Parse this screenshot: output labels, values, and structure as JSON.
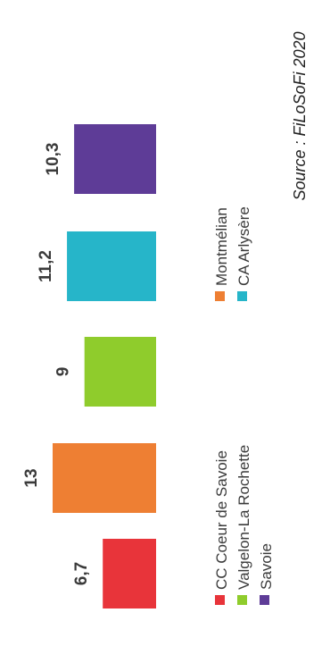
{
  "chart_data": {
    "type": "bar",
    "categories": [
      "CC Coeur de Savoie",
      "Montmélian",
      "Valgelon-La Rochette",
      "CA Arlysère",
      "Savoie"
    ],
    "values": [
      6.7,
      13,
      9,
      11.2,
      10.3
    ],
    "value_labels": [
      "6,7",
      "13",
      "9",
      "11,2",
      "10,3"
    ],
    "colors": [
      "#e8343a",
      "#ee7f33",
      "#8fcc2c",
      "#26b5c9",
      "#5e3c97"
    ],
    "ylim": [
      0,
      13.5
    ],
    "orientation": "rotated-90",
    "grid": false,
    "legend_placement": "bottom",
    "source": "Source : FiLoSoFi 2020"
  }
}
